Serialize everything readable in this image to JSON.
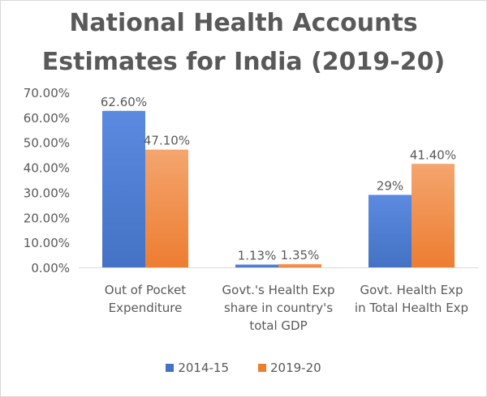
{
  "chart_data": {
    "type": "bar",
    "title_lines": [
      "National Health Accounts",
      "Estimates for India (2019-20)"
    ],
    "categories": [
      [
        "Out of Pocket",
        "Expenditure"
      ],
      [
        "Govt.'s Health Exp",
        "share in country's",
        "total GDP"
      ],
      [
        "Govt. Health Exp",
        "in Total Health Exp"
      ]
    ],
    "series": [
      {
        "name": "2014-15",
        "values": [
          62.6,
          1.13,
          29
        ],
        "labels": [
          "62.60%",
          "1.13%",
          "29%"
        ],
        "color": "#4472c4",
        "color_light": "#5b8ae0"
      },
      {
        "name": "2019-20",
        "values": [
          47.1,
          1.35,
          41.4
        ],
        "labels": [
          "47.10%",
          "1.35%",
          "41.40%"
        ],
        "color": "#ed7d31",
        "color_light": "#f4a56e"
      }
    ],
    "yticks": [
      "0.00%",
      "10.00%",
      "20.00%",
      "30.00%",
      "40.00%",
      "50.00%",
      "60.00%",
      "70.00%"
    ],
    "ylim": [
      0,
      70
    ],
    "grid": false,
    "legend_position": "bottom",
    "colors": {
      "axis": "#d9d9d9",
      "text": "#595959"
    }
  }
}
